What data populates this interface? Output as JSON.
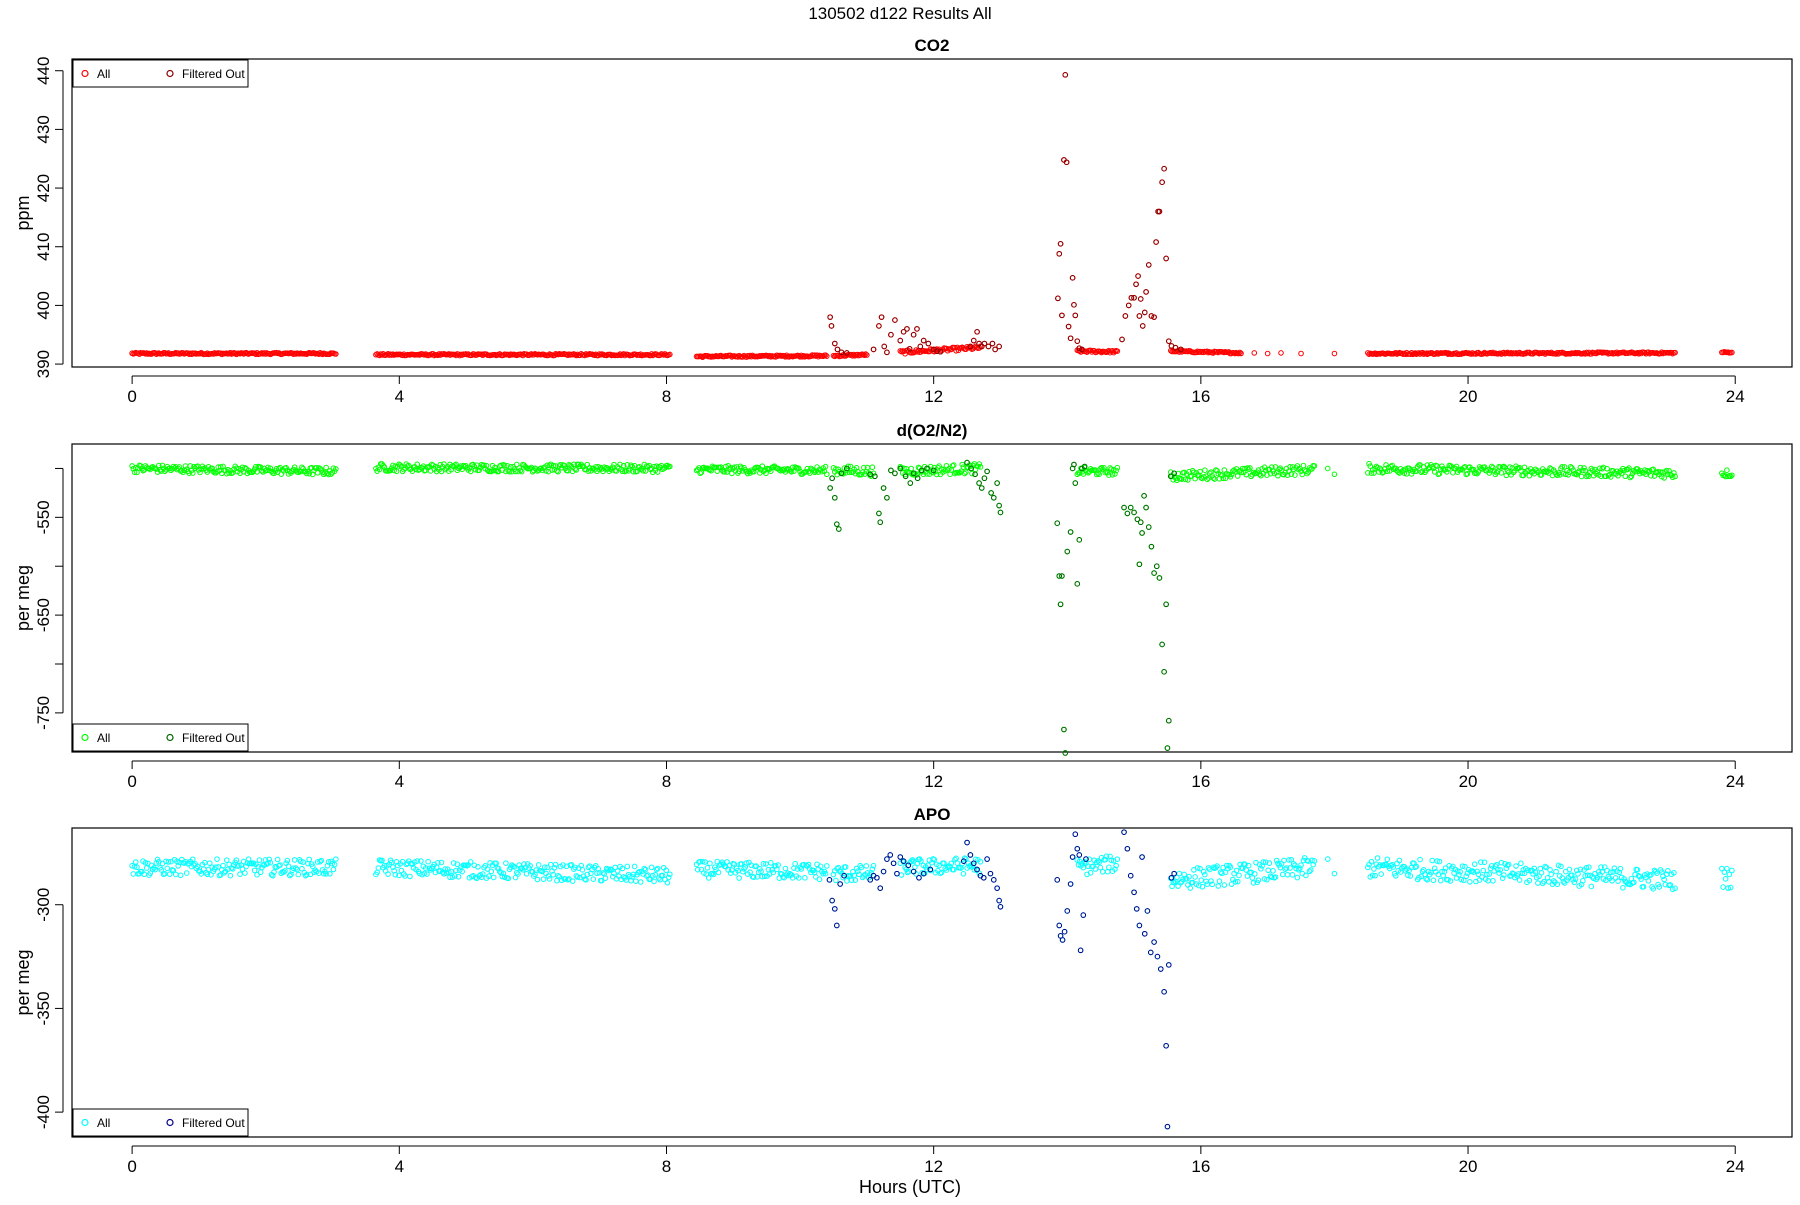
{
  "suptitle": "130502   d122   Results All",
  "xlabel": "Hours (UTC)",
  "chart_data": [
    {
      "type": "scatter",
      "title": "CO2",
      "ylabel": "ppm",
      "xlim": [
        -0.9,
        24.85
      ],
      "ylim": [
        389.5,
        442.0
      ],
      "xticks": [
        0,
        4,
        8,
        12,
        16,
        20,
        24
      ],
      "yticks": [
        390,
        400,
        410,
        420,
        430,
        440
      ],
      "legend_position": "top-left",
      "series": [
        {
          "name": "All",
          "color": "#ff0000",
          "marker": "open-circle"
        },
        {
          "name": "Filtered Out",
          "color": "#8b0000",
          "marker": "open-circle"
        }
      ],
      "segments": [
        {
          "x": [
            0.0,
            3.05
          ],
          "y_start": 391.8,
          "y_end": 391.8,
          "noise": 0.15
        },
        {
          "x": [
            3.65,
            8.05
          ],
          "y_start": 391.6,
          "y_end": 391.6,
          "noise": 0.15
        },
        {
          "x": [
            8.45,
            10.4
          ],
          "y_start": 391.3,
          "y_end": 391.4,
          "noise": 0.15
        },
        {
          "x": [
            10.5,
            11.0
          ],
          "y_start": 391.4,
          "y_end": 391.6,
          "noise": 0.15
        },
        {
          "x": [
            11.5,
            12.7
          ],
          "y_start": 392.0,
          "y_end": 392.8,
          "noise": 0.3
        },
        {
          "x": [
            14.15,
            14.75
          ],
          "y_start": 392.2,
          "y_end": 392.1,
          "noise": 0.2
        },
        {
          "x": [
            15.55,
            16.6
          ],
          "y_start": 392.2,
          "y_end": 391.9,
          "noise": 0.15
        },
        {
          "x": [
            18.5,
            23.1
          ],
          "y_start": 391.8,
          "y_end": 391.9,
          "noise": 0.15
        },
        {
          "x": [
            23.8,
            23.95
          ],
          "y_start": 392.0,
          "y_end": 392.0,
          "noise": 0.1
        }
      ],
      "sparse_points": [
        [
          16.6,
          391.8
        ],
        [
          16.8,
          391.9
        ],
        [
          17.0,
          391.8
        ],
        [
          17.2,
          391.9
        ],
        [
          17.5,
          391.8
        ],
        [
          18.0,
          391.8
        ],
        [
          19.2,
          391.8
        ],
        [
          19.7,
          391.9
        ]
      ],
      "filtered_points": [
        [
          10.45,
          398.0
        ],
        [
          10.47,
          396.5
        ],
        [
          10.52,
          393.5
        ],
        [
          10.56,
          392.5
        ],
        [
          10.62,
          392.0
        ],
        [
          10.7,
          391.9
        ],
        [
          11.1,
          392.5
        ],
        [
          11.18,
          396.5
        ],
        [
          11.22,
          398.0
        ],
        [
          11.26,
          393.0
        ],
        [
          11.3,
          392.0
        ],
        [
          11.36,
          395.0
        ],
        [
          11.42,
          397.5
        ],
        [
          11.5,
          394.0
        ],
        [
          11.55,
          395.5
        ],
        [
          11.6,
          396.0
        ],
        [
          11.64,
          392.6
        ],
        [
          11.7,
          395.0
        ],
        [
          11.75,
          396.0
        ],
        [
          11.8,
          393.0
        ],
        [
          11.85,
          394.0
        ],
        [
          11.92,
          393.5
        ],
        [
          12.0,
          392.5
        ],
        [
          12.05,
          392.2
        ],
        [
          12.1,
          392.1
        ],
        [
          12.55,
          393.0
        ],
        [
          12.6,
          394.0
        ],
        [
          12.65,
          395.5
        ],
        [
          12.68,
          393.5
        ],
        [
          12.72,
          393.0
        ],
        [
          12.76,
          393.5
        ],
        [
          12.82,
          393.0
        ],
        [
          12.88,
          393.5
        ],
        [
          12.92,
          392.5
        ],
        [
          12.98,
          393.0
        ],
        [
          13.86,
          401.2
        ],
        [
          13.88,
          408.8
        ],
        [
          13.9,
          410.5
        ],
        [
          13.92,
          398.3
        ],
        [
          13.95,
          424.8
        ],
        [
          13.97,
          439.3
        ],
        [
          13.99,
          424.4
        ],
        [
          14.02,
          396.4
        ],
        [
          14.05,
          394.4
        ],
        [
          14.08,
          404.7
        ],
        [
          14.1,
          400.1
        ],
        [
          14.12,
          398.3
        ],
        [
          14.15,
          393.9
        ],
        [
          14.18,
          392.7
        ],
        [
          14.22,
          392.5
        ],
        [
          14.82,
          394.2
        ],
        [
          14.87,
          398.2
        ],
        [
          14.92,
          400.0
        ],
        [
          14.96,
          401.3
        ],
        [
          15.0,
          401.3
        ],
        [
          15.03,
          403.6
        ],
        [
          15.06,
          405.0
        ],
        [
          15.08,
          398.2
        ],
        [
          15.1,
          401.1
        ],
        [
          15.13,
          396.5
        ],
        [
          15.16,
          398.8
        ],
        [
          15.18,
          402.3
        ],
        [
          15.22,
          406.9
        ],
        [
          15.26,
          398.2
        ],
        [
          15.3,
          398.0
        ],
        [
          15.33,
          410.8
        ],
        [
          15.36,
          416.0
        ],
        [
          15.38,
          416.0
        ],
        [
          15.42,
          421.0
        ],
        [
          15.45,
          423.3
        ],
        [
          15.48,
          408.0
        ],
        [
          15.52,
          393.9
        ],
        [
          15.56,
          393.1
        ],
        [
          15.62,
          392.8
        ],
        [
          15.7,
          392.5
        ]
      ]
    },
    {
      "type": "scatter",
      "title": "d(O2/N2)",
      "ylabel": "per meg",
      "xlim": [
        -0.9,
        24.85
      ],
      "ylim": [
        -790,
        -475
      ],
      "xticks": [
        0,
        4,
        8,
        12,
        16,
        20,
        24
      ],
      "yticks": [
        -750,
        -700,
        -650,
        -600,
        -550,
        -500
      ],
      "ytick_labels": [
        "-750",
        "",
        "-650",
        "",
        "-550",
        ""
      ],
      "legend_position": "bottom-left",
      "series": [
        {
          "name": "All",
          "color": "#00ff00",
          "marker": "open-circle"
        },
        {
          "name": "Filtered Out",
          "color": "#006400",
          "marker": "open-circle"
        }
      ],
      "segments": [
        {
          "x": [
            0.0,
            3.05
          ],
          "y_start": -500,
          "y_end": -503,
          "noise": 4
        },
        {
          "x": [
            3.65,
            8.05
          ],
          "y_start": -499,
          "y_end": -500,
          "noise": 4
        },
        {
          "x": [
            8.45,
            10.4
          ],
          "y_start": -501,
          "y_end": -502,
          "noise": 4
        },
        {
          "x": [
            10.5,
            11.1
          ],
          "y_start": -502,
          "y_end": -503,
          "noise": 5
        },
        {
          "x": [
            11.5,
            12.7
          ],
          "y_start": -503,
          "y_end": -500,
          "noise": 5
        },
        {
          "x": [
            14.15,
            14.75
          ],
          "y_start": -503,
          "y_end": -503,
          "noise": 4
        },
        {
          "x": [
            15.55,
            17.7
          ],
          "y_start": -508,
          "y_end": -501,
          "noise": 5
        },
        {
          "x": [
            18.5,
            23.1
          ],
          "y_start": -500,
          "y_end": -505,
          "noise": 5
        },
        {
          "x": [
            23.8,
            23.95
          ],
          "y_start": -505,
          "y_end": -505,
          "noise": 4
        }
      ],
      "sparse_points": [
        [
          17.9,
          -500
        ],
        [
          18.0,
          -506
        ]
      ],
      "filtered_points": [
        [
          10.45,
          -520
        ],
        [
          10.48,
          -510
        ],
        [
          10.52,
          -530
        ],
        [
          10.55,
          -557
        ],
        [
          10.58,
          -562
        ],
        [
          10.62,
          -505
        ],
        [
          10.7,
          -500
        ],
        [
          11.05,
          -506
        ],
        [
          11.12,
          -508
        ],
        [
          11.18,
          -546
        ],
        [
          11.2,
          -555
        ],
        [
          11.25,
          -520
        ],
        [
          11.3,
          -530
        ],
        [
          11.36,
          -502
        ],
        [
          11.42,
          -505
        ],
        [
          11.5,
          -500
        ],
        [
          11.58,
          -508
        ],
        [
          11.65,
          -515
        ],
        [
          11.7,
          -505
        ],
        [
          11.76,
          -510
        ],
        [
          11.82,
          -502
        ],
        [
          11.9,
          -500
        ],
        [
          12.0,
          -502
        ],
        [
          12.5,
          -494
        ],
        [
          12.56,
          -500
        ],
        [
          12.62,
          -506
        ],
        [
          12.68,
          -515
        ],
        [
          12.72,
          -520
        ],
        [
          12.76,
          -510
        ],
        [
          12.8,
          -503
        ],
        [
          12.86,
          -525
        ],
        [
          12.9,
          -530
        ],
        [
          12.95,
          -515
        ],
        [
          12.98,
          -538
        ],
        [
          13.0,
          -545
        ],
        [
          13.85,
          -556
        ],
        [
          13.88,
          -610
        ],
        [
          13.9,
          -639
        ],
        [
          13.92,
          -610
        ],
        [
          13.95,
          -767
        ],
        [
          13.97,
          -791
        ],
        [
          14.0,
          -585
        ],
        [
          14.05,
          -565
        ],
        [
          14.08,
          -500
        ],
        [
          14.1,
          -496
        ],
        [
          14.12,
          -515
        ],
        [
          14.15,
          -618
        ],
        [
          14.18,
          -573
        ],
        [
          14.22,
          -500
        ],
        [
          14.26,
          -498
        ],
        [
          14.85,
          -540
        ],
        [
          14.9,
          -546
        ],
        [
          14.95,
          -540
        ],
        [
          15.0,
          -545
        ],
        [
          15.05,
          -552
        ],
        [
          15.08,
          -598
        ],
        [
          15.1,
          -555
        ],
        [
          15.12,
          -566
        ],
        [
          15.15,
          -528
        ],
        [
          15.18,
          -540
        ],
        [
          15.22,
          -560
        ],
        [
          15.26,
          -580
        ],
        [
          15.3,
          -607
        ],
        [
          15.34,
          -600
        ],
        [
          15.38,
          -612
        ],
        [
          15.42,
          -680
        ],
        [
          15.45,
          -708
        ],
        [
          15.48,
          -639
        ],
        [
          15.5,
          -786
        ],
        [
          15.52,
          -758
        ],
        [
          15.55,
          -508
        ],
        [
          15.6,
          -505
        ]
      ]
    },
    {
      "type": "scatter",
      "title": "APO",
      "ylabel": "per meg",
      "xlim": [
        -0.9,
        24.85
      ],
      "ylim": [
        -412,
        -263
      ],
      "xticks": [
        0,
        4,
        8,
        12,
        16,
        20,
        24
      ],
      "yticks": [
        -400,
        -350,
        -300
      ],
      "legend_position": "bottom-left",
      "series": [
        {
          "name": "All",
          "color": "#00ffff",
          "marker": "open-circle"
        },
        {
          "name": "Filtered Out",
          "color": "#00008b",
          "marker": "open-circle"
        }
      ],
      "segments": [
        {
          "x": [
            0.0,
            3.05
          ],
          "y_start": -282,
          "y_end": -282,
          "noise": 4
        },
        {
          "x": [
            3.65,
            8.05
          ],
          "y_start": -282,
          "y_end": -286,
          "noise": 4
        },
        {
          "x": [
            8.45,
            10.4
          ],
          "y_start": -283,
          "y_end": -284,
          "noise": 4
        },
        {
          "x": [
            10.5,
            11.1
          ],
          "y_start": -285,
          "y_end": -285,
          "noise": 4
        },
        {
          "x": [
            11.5,
            12.7
          ],
          "y_start": -282,
          "y_end": -281,
          "noise": 4
        },
        {
          "x": [
            14.15,
            14.75
          ],
          "y_start": -282,
          "y_end": -280,
          "noise": 4
        },
        {
          "x": [
            15.55,
            17.7
          ],
          "y_start": -288,
          "y_end": -282,
          "noise": 5
        },
        {
          "x": [
            18.5,
            23.1
          ],
          "y_start": -282,
          "y_end": -288,
          "noise": 5
        },
        {
          "x": [
            23.8,
            23.95
          ],
          "y_start": -287,
          "y_end": -287,
          "noise": 5
        }
      ],
      "sparse_points": [
        [
          17.9,
          -278
        ],
        [
          18.0,
          -285
        ]
      ],
      "filtered_points": [
        [
          10.44,
          -288
        ],
        [
          10.48,
          -298
        ],
        [
          10.52,
          -302
        ],
        [
          10.55,
          -310
        ],
        [
          10.6,
          -290
        ],
        [
          10.66,
          -286
        ],
        [
          11.05,
          -288
        ],
        [
          11.1,
          -286
        ],
        [
          11.15,
          -287
        ],
        [
          11.2,
          -292
        ],
        [
          11.25,
          -284
        ],
        [
          11.3,
          -278
        ],
        [
          11.35,
          -276
        ],
        [
          11.4,
          -280
        ],
        [
          11.45,
          -285
        ],
        [
          11.5,
          -277
        ],
        [
          11.55,
          -279
        ],
        [
          11.62,
          -281
        ],
        [
          11.7,
          -284
        ],
        [
          11.78,
          -287
        ],
        [
          11.85,
          -285
        ],
        [
          11.95,
          -283
        ],
        [
          12.45,
          -279
        ],
        [
          12.5,
          -270
        ],
        [
          12.55,
          -276
        ],
        [
          12.6,
          -280
        ],
        [
          12.65,
          -283
        ],
        [
          12.7,
          -286
        ],
        [
          12.75,
          -287
        ],
        [
          12.8,
          -278
        ],
        [
          12.85,
          -285
        ],
        [
          12.9,
          -288
        ],
        [
          12.95,
          -292
        ],
        [
          12.98,
          -298
        ],
        [
          13.0,
          -301
        ],
        [
          13.85,
          -288
        ],
        [
          13.88,
          -310
        ],
        [
          13.9,
          -315
        ],
        [
          13.93,
          -317
        ],
        [
          13.96,
          -313
        ],
        [
          14.0,
          -303
        ],
        [
          14.05,
          -290
        ],
        [
          14.08,
          -277
        ],
        [
          14.12,
          -266
        ],
        [
          14.15,
          -273
        ],
        [
          14.18,
          -276
        ],
        [
          14.2,
          -322
        ],
        [
          14.24,
          -305
        ],
        [
          14.28,
          -278
        ],
        [
          14.85,
          -265
        ],
        [
          14.9,
          -273
        ],
        [
          14.95,
          -286
        ],
        [
          15.0,
          -294
        ],
        [
          15.04,
          -302
        ],
        [
          15.08,
          -310
        ],
        [
          15.12,
          -277
        ],
        [
          15.16,
          -314
        ],
        [
          15.2,
          -303
        ],
        [
          15.25,
          -323
        ],
        [
          15.3,
          -318
        ],
        [
          15.35,
          -325
        ],
        [
          15.4,
          -331
        ],
        [
          15.45,
          -342
        ],
        [
          15.48,
          -368
        ],
        [
          15.5,
          -407
        ],
        [
          15.52,
          -329
        ],
        [
          15.56,
          -287
        ],
        [
          15.6,
          -285
        ]
      ]
    }
  ]
}
